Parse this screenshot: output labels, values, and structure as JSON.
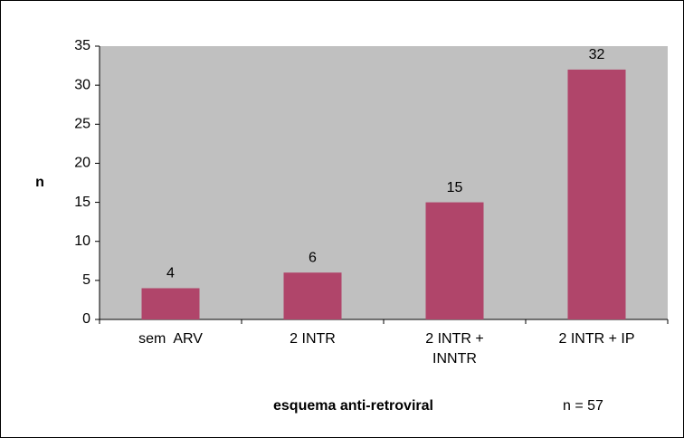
{
  "chart_data": {
    "type": "bar",
    "categories": [
      "sem  ARV",
      "2 INTR",
      "2 INTR +\nINNTR",
      "2 INTR + IP"
    ],
    "values": [
      4,
      6,
      15,
      32
    ],
    "color": "#b0456a",
    "ylim": [
      0,
      35
    ],
    "yticks": [
      0,
      5,
      10,
      15,
      20,
      25,
      30,
      35
    ],
    "ylabel": "n",
    "xlabel": "esquema anti-retroviral",
    "annotation": "n = 57",
    "grid": false
  }
}
